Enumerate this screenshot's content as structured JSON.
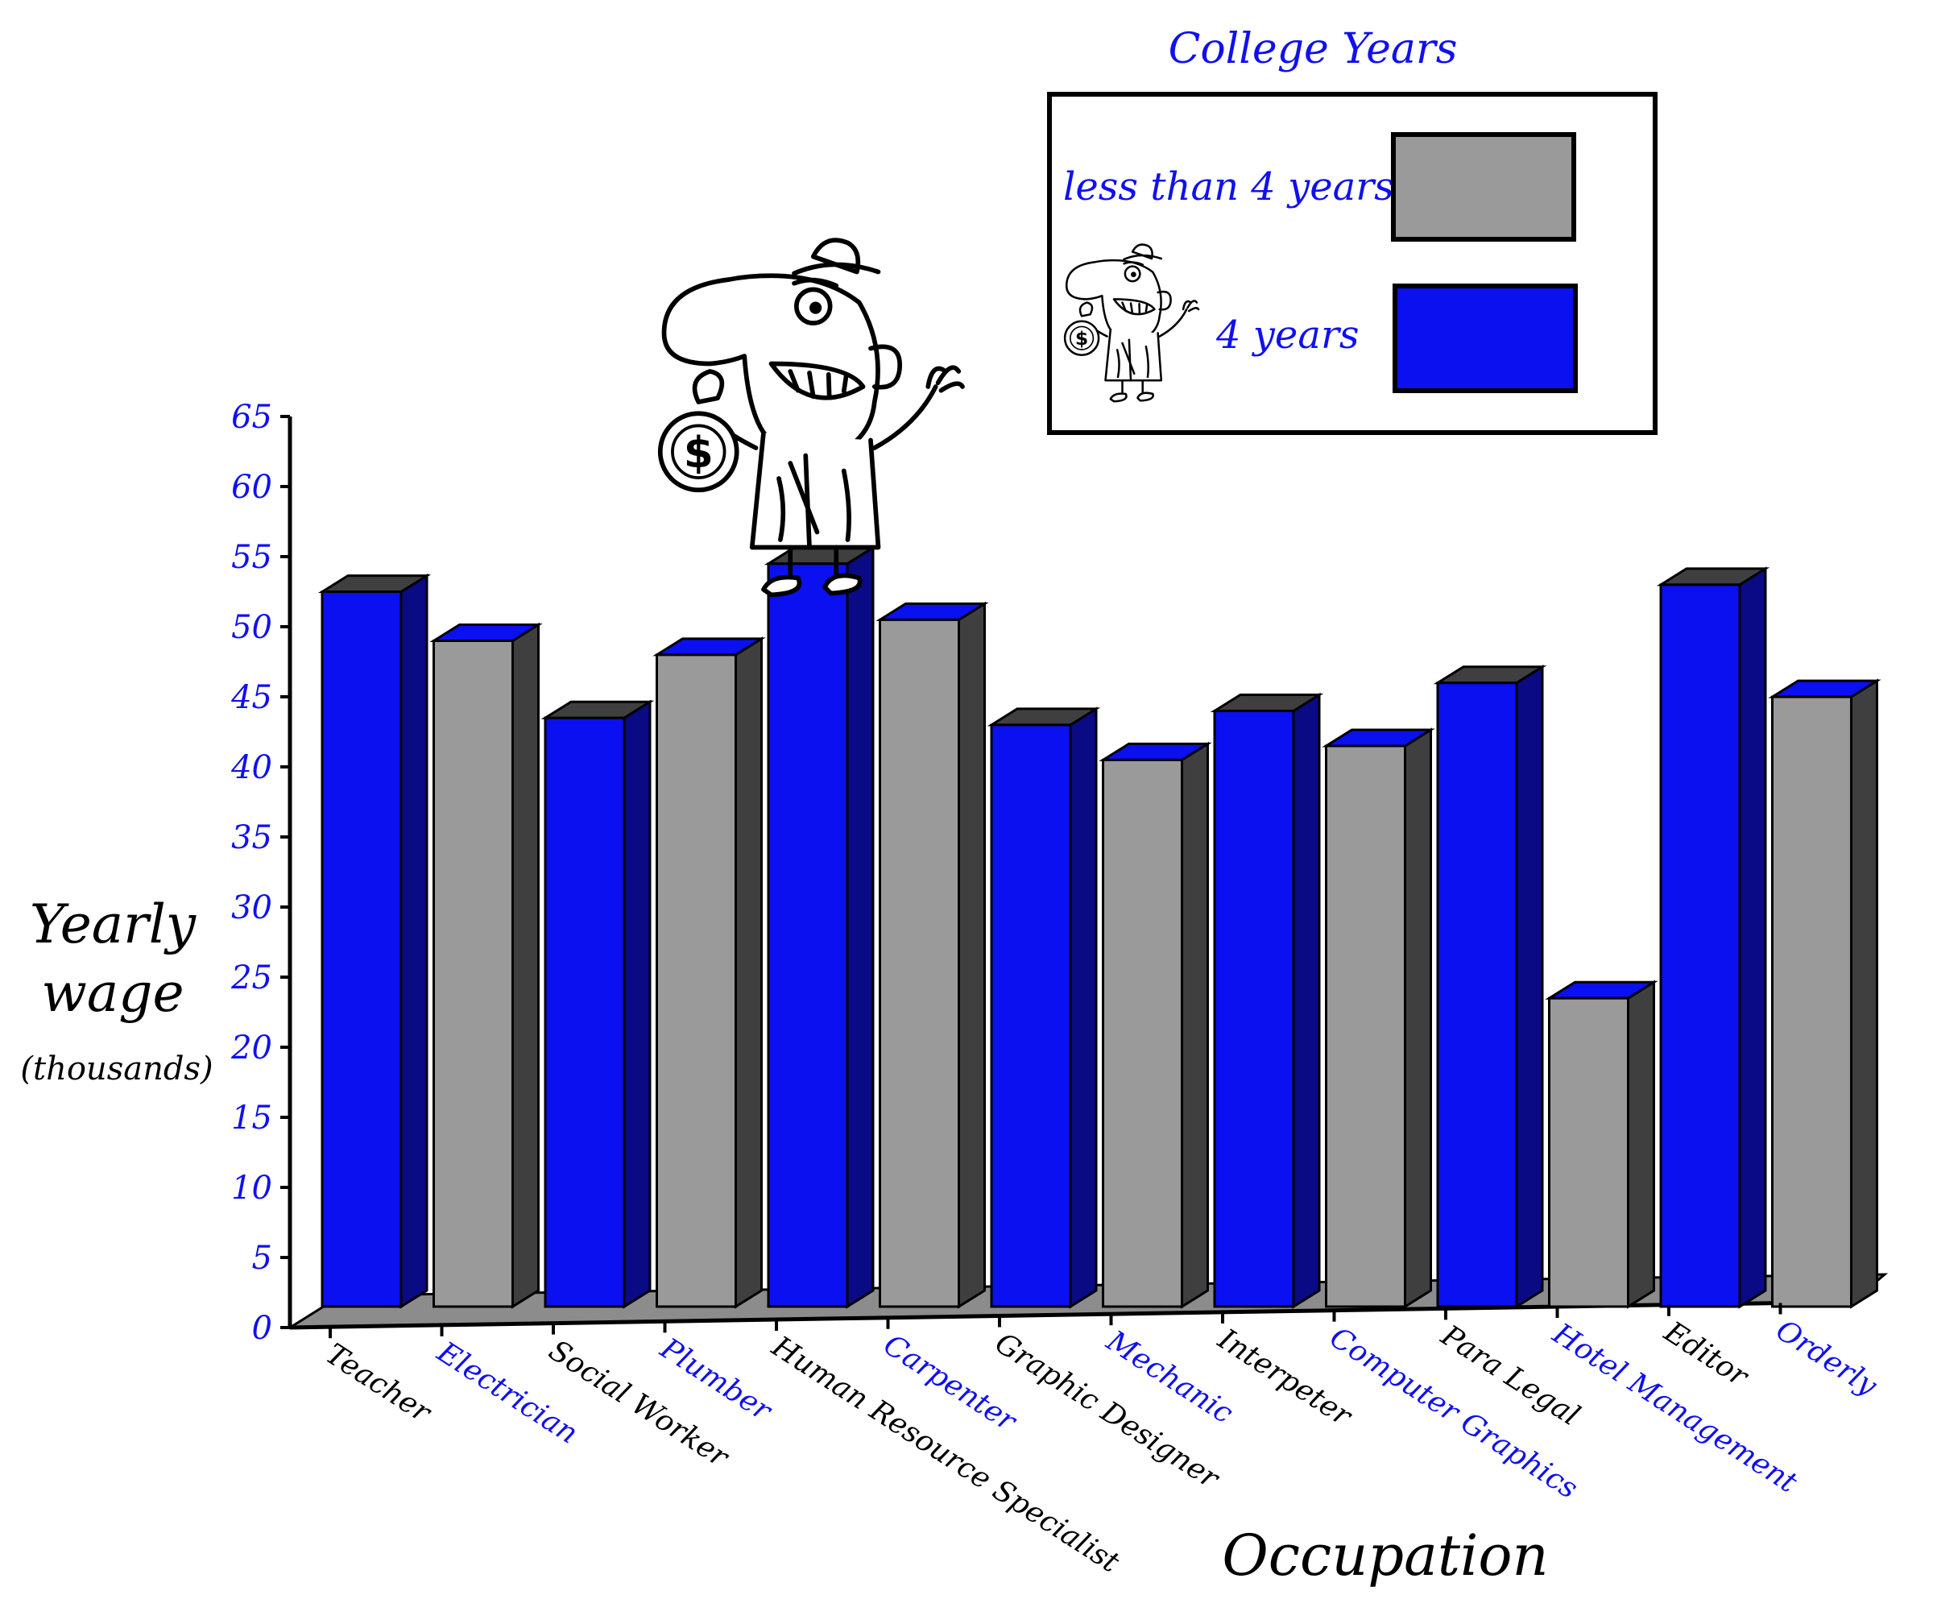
{
  "colors": {
    "four_years": "#0b10f0",
    "four_years_side": "#0a0a85",
    "less_than_four": "#9a9a9a",
    "less_than_four_side": "#3f3f3f",
    "floor": "#8c8c8c",
    "label_blue": "#1010ee",
    "label_black": "#000000"
  },
  "chart_data": {
    "type": "bar",
    "title": "College Years",
    "xlabel": "Occupation",
    "ylabel": "Yearly wage",
    "ylabel_unit": "(thousands)",
    "ylim": [
      0,
      65
    ],
    "yticks": [
      "0",
      "5",
      "10",
      "15",
      "20",
      "25",
      "30",
      "35",
      "40",
      "45",
      "50",
      "55",
      "60",
      "65"
    ],
    "legend": {
      "placement": "top-right",
      "entries": [
        {
          "label": "less than 4 years",
          "key": "less_than_four"
        },
        {
          "label": "4 years",
          "key": "four_years"
        }
      ]
    },
    "bars": [
      {
        "category": "Teacher",
        "value": 51,
        "group": "four_years",
        "label_color": "label_black"
      },
      {
        "category": "Electrician",
        "value": 47.5,
        "group": "less_than_four",
        "label_color": "label_blue"
      },
      {
        "category": "Social Worker",
        "value": 42,
        "group": "four_years",
        "label_color": "label_black"
      },
      {
        "category": "Plumber",
        "value": 46.5,
        "group": "less_than_four",
        "label_color": "label_blue"
      },
      {
        "category": "Human Resource Specialist",
        "value": 53,
        "group": "four_years",
        "label_color": "label_black"
      },
      {
        "category": "Carpenter",
        "value": 49,
        "group": "less_than_four",
        "label_color": "label_blue"
      },
      {
        "category": "Graphic Designer",
        "value": 41.5,
        "group": "four_years",
        "label_color": "label_black"
      },
      {
        "category": "Mechanic",
        "value": 39,
        "group": "less_than_four",
        "label_color": "label_blue"
      },
      {
        "category": "Interpeter",
        "value": 42.5,
        "group": "four_years",
        "label_color": "label_black"
      },
      {
        "category": "Computer Graphics",
        "value": 40,
        "group": "less_than_four",
        "label_color": "label_blue"
      },
      {
        "category": "Para Legal",
        "value": 44.5,
        "group": "four_years",
        "label_color": "label_black"
      },
      {
        "category": "Hotel Management",
        "value": 22,
        "group": "less_than_four",
        "label_color": "label_blue"
      },
      {
        "category": "Editor",
        "value": 51.5,
        "group": "four_years",
        "label_color": "label_black"
      },
      {
        "category": "Orderly",
        "value": 43.5,
        "group": "less_than_four",
        "label_color": "label_blue"
      }
    ]
  }
}
